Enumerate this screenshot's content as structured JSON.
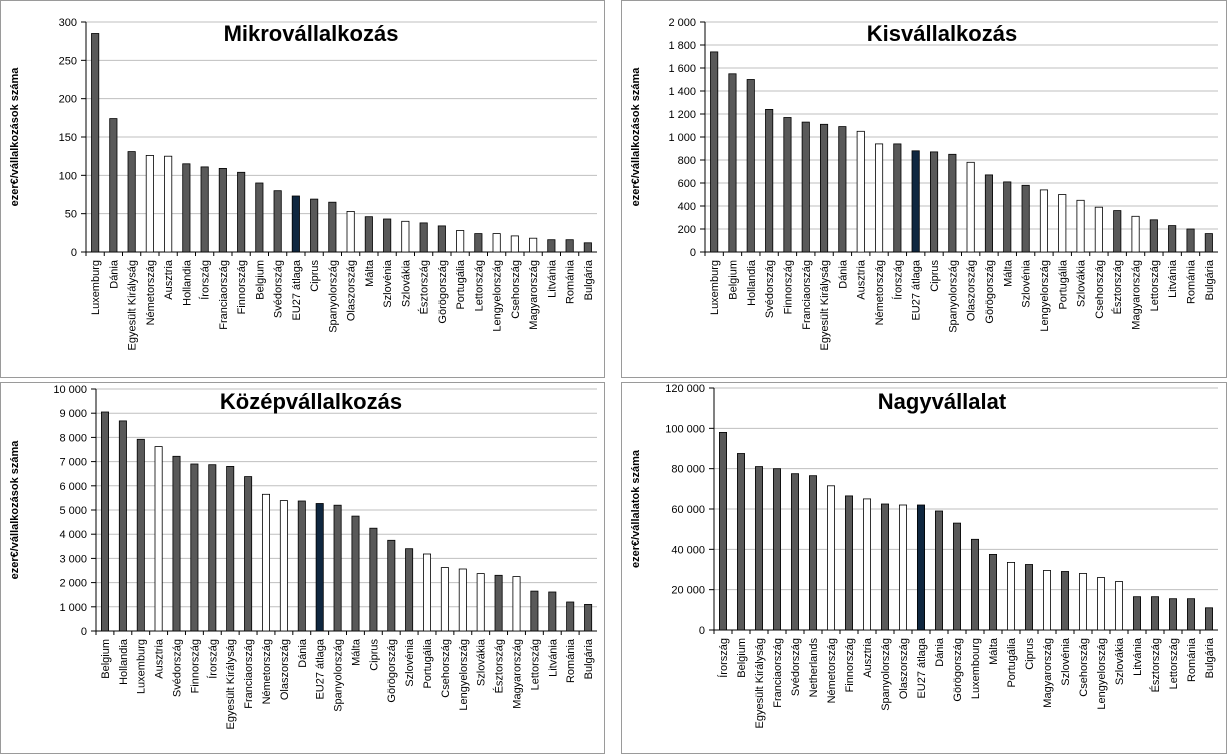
{
  "chart_data": [
    {
      "type": "bar",
      "title": "Mikrovállalkozás",
      "ylabel": "ezer€/vállalkozások száma",
      "ylim": [
        0,
        300
      ],
      "yticks": [
        "0",
        "50",
        "100",
        "150",
        "200",
        "250",
        "300"
      ],
      "grid": true,
      "categories": [
        "Luxemburg",
        "Dánia",
        "Egyesült Királyság",
        "Németország",
        "Ausztria",
        "Hollandia",
        "Írország",
        "Franciaország",
        "Finnország",
        "Belgium",
        "Svédország",
        "EU27 átlaga",
        "Ciprus",
        "Spanyolország",
        "Olaszország",
        "Málta",
        "Szlovénia",
        "Szlovákia",
        "Észtország",
        "Görögország",
        "Portugália",
        "Lettország",
        "Lengyelország",
        "Csehország",
        "Magyarország",
        "Litvánia",
        "Románia",
        "Bulgária"
      ],
      "values": [
        285,
        174,
        131,
        126,
        125,
        115,
        111,
        109,
        104,
        90,
        80,
        73,
        69,
        65,
        53,
        46,
        43,
        40,
        38,
        34,
        28,
        24,
        24,
        21,
        18,
        16,
        16,
        12
      ],
      "fill": [
        "g",
        "g",
        "g",
        "w",
        "w",
        "g",
        "g",
        "g",
        "g",
        "g",
        "g",
        "n",
        "g",
        "g",
        "w",
        "g",
        "g",
        "w",
        "g",
        "g",
        "w",
        "g",
        "w",
        "w",
        "w",
        "g",
        "g",
        "g"
      ]
    },
    {
      "type": "bar",
      "title": "Kisvállalkozás",
      "ylabel": "ezer€/vállalkozások száma",
      "ylim": [
        0,
        2000
      ],
      "yticks": [
        "0",
        "200",
        "400",
        "600",
        "800",
        "1 000",
        "1 200",
        "1 400",
        "1 600",
        "1 800",
        "2 000"
      ],
      "grid": true,
      "categories": [
        "Luxemburg",
        "Belgium",
        "Hollandia",
        "Svédország",
        "Finnország",
        "Franciaország",
        "Egyesült Királyság",
        "Dánia",
        "Ausztria",
        "Németország",
        "Írország",
        "EU27 átlaga",
        "Ciprus",
        "Spanyolország",
        "Olaszország",
        "Görögország",
        "Málta",
        "Szlovénia",
        "Lengyelország",
        "Portugália",
        "Szlovákia",
        "Csehország",
        "Észtország",
        "Magyarország",
        "Lettország",
        "Litvánia",
        "Románia",
        "Bulgária"
      ],
      "values": [
        1740,
        1550,
        1500,
        1240,
        1170,
        1130,
        1110,
        1090,
        1050,
        940,
        940,
        880,
        870,
        850,
        780,
        670,
        610,
        580,
        540,
        500,
        450,
        390,
        360,
        310,
        280,
        230,
        200,
        160
      ],
      "fill": [
        "g",
        "g",
        "g",
        "g",
        "g",
        "g",
        "g",
        "g",
        "w",
        "w",
        "g",
        "n",
        "g",
        "g",
        "w",
        "g",
        "g",
        "g",
        "w",
        "w",
        "w",
        "w",
        "g",
        "w",
        "g",
        "g",
        "g",
        "g"
      ]
    },
    {
      "type": "bar",
      "title": "Középvállalkozás",
      "ylabel": "ezer€/vállalkozások száma",
      "ylim": [
        0,
        10000
      ],
      "yticks": [
        "0",
        "1 000",
        "2 000",
        "3 000",
        "4 000",
        "5 000",
        "6 000",
        "7 000",
        "8 000",
        "9 000",
        "10 000"
      ],
      "grid": true,
      "categories": [
        "Belgium",
        "Hollandia",
        "Luxemburg",
        "Ausztria",
        "Svédország",
        "Finnország",
        "Írország",
        "Egyesült Királyság",
        "Franciaország",
        "Németország",
        "Olaszország",
        "Dánia",
        "EU27 átlaga",
        "Spanyolország",
        "Málta",
        "Ciprus",
        "Görögország",
        "Szlovénia",
        "Portugália",
        "Csehország",
        "Lengyelország",
        "Szlovákia",
        "Észtország",
        "Magyarország",
        "Lettország",
        "Litvánia",
        "Románia",
        "Bulgária"
      ],
      "values": [
        9050,
        8680,
        7920,
        7620,
        7220,
        6900,
        6870,
        6800,
        6380,
        5650,
        5390,
        5370,
        5270,
        5200,
        4750,
        4250,
        3750,
        3400,
        3180,
        2620,
        2560,
        2370,
        2300,
        2250,
        1650,
        1610,
        1200,
        1100
      ],
      "fill": [
        "g",
        "g",
        "g",
        "w",
        "g",
        "g",
        "g",
        "g",
        "g",
        "w",
        "w",
        "g",
        "n",
        "g",
        "g",
        "g",
        "g",
        "g",
        "w",
        "w",
        "w",
        "w",
        "g",
        "w",
        "g",
        "g",
        "g",
        "g"
      ]
    },
    {
      "type": "bar",
      "title": "Nagyvállalat",
      "ylabel": "ezer€/vállalatok száma",
      "ylim": [
        0,
        120000
      ],
      "yticks": [
        "0",
        "20 000",
        "40 000",
        "60 000",
        "80 000",
        "100 000",
        "120 000"
      ],
      "grid": true,
      "categories": [
        "Írország",
        "Belgium",
        "Egyesült Királyság",
        "Franciaország",
        "Svédország",
        "Netherlands",
        "Németország",
        "Finnország",
        "Ausztria",
        "Spanyolország",
        "Olaszország",
        "EU27 átlaga",
        "Dánia",
        "Görögország",
        "Luxembourg",
        "Málta",
        "Portugália",
        "Ciprus",
        "Magyarország",
        "Szlovénia",
        "Csehország",
        "Lengyelország",
        "Szlovákia",
        "Litvánia",
        "Észtország",
        "Lettország",
        "Románia",
        "Bulgária"
      ],
      "values": [
        98000,
        87500,
        81000,
        80000,
        77500,
        76500,
        71500,
        66500,
        65000,
        62500,
        62000,
        62000,
        59000,
        53000,
        45000,
        37500,
        33500,
        32500,
        29500,
        29000,
        28000,
        26000,
        24000,
        16500,
        16500,
        15500,
        15500,
        11000
      ],
      "fill": [
        "g",
        "g",
        "g",
        "g",
        "g",
        "g",
        "w",
        "g",
        "w",
        "g",
        "w",
        "n",
        "g",
        "g",
        "g",
        "g",
        "w",
        "g",
        "w",
        "g",
        "w",
        "w",
        "w",
        "g",
        "g",
        "g",
        "g",
        "g"
      ]
    }
  ],
  "colors": {
    "gray": "#595959",
    "white": "#ffffff",
    "navy": "#0f2740",
    "outline": "#000000",
    "grid": "#bfbfbf"
  }
}
